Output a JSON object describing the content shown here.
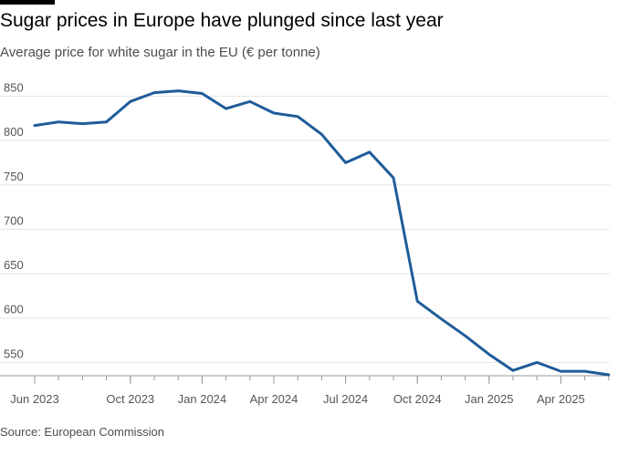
{
  "header": {
    "title": "Sugar prices in Europe have plunged since last year",
    "subtitle": "Average price for white sugar in the EU (€ per tonne)"
  },
  "footer": {
    "source": "Source: European Commission"
  },
  "colors": {
    "line": "#1f5c99",
    "grid": "#e6e6e6",
    "axis": "#999999",
    "text": "#555555"
  },
  "chart_data": {
    "type": "line",
    "title": "Sugar prices in Europe have plunged since last year",
    "subtitle": "Average price for white sugar in the EU (€ per tonne)",
    "xlabel": "",
    "ylabel": "€ per tonne",
    "x": [
      "2023-06",
      "2023-07",
      "2023-08",
      "2023-09",
      "2023-10",
      "2023-11",
      "2023-12",
      "2024-01",
      "2024-02",
      "2024-03",
      "2024-04",
      "2024-05",
      "2024-06",
      "2024-07",
      "2024-08",
      "2024-09",
      "2024-10",
      "2024-11",
      "2024-12",
      "2025-01",
      "2025-02",
      "2025-03",
      "2025-04",
      "2025-05",
      "2025-06"
    ],
    "series": [
      {
        "name": "White sugar average price",
        "values": [
          817,
          821,
          819,
          821,
          844,
          854,
          856,
          853,
          836,
          844,
          831,
          827,
          807,
          775,
          787,
          758,
          619,
          599,
          580,
          559,
          541,
          550,
          540,
          540,
          536
        ]
      }
    ],
    "ylim": [
      535,
      870
    ],
    "yticks": [
      550,
      600,
      650,
      700,
      750,
      800,
      850
    ],
    "xticks": [
      {
        "index": 0,
        "label": "Jun 2023"
      },
      {
        "index": 4,
        "label": "Oct 2023"
      },
      {
        "index": 7,
        "label": "Jan 2024"
      },
      {
        "index": 10,
        "label": "Apr 2024"
      },
      {
        "index": 13,
        "label": "Jul 2024"
      },
      {
        "index": 16,
        "label": "Oct 2024"
      },
      {
        "index": 19,
        "label": "Jan 2025"
      },
      {
        "index": 22,
        "label": "Apr 2025"
      }
    ],
    "minor_tick_indices": [
      0,
      1,
      2,
      3,
      4,
      5,
      6,
      7,
      8,
      9,
      10,
      11,
      12,
      13,
      14,
      15,
      16,
      17,
      18,
      19,
      20,
      21,
      22,
      23,
      24
    ],
    "grid": true,
    "source": "Source: European Commission"
  }
}
